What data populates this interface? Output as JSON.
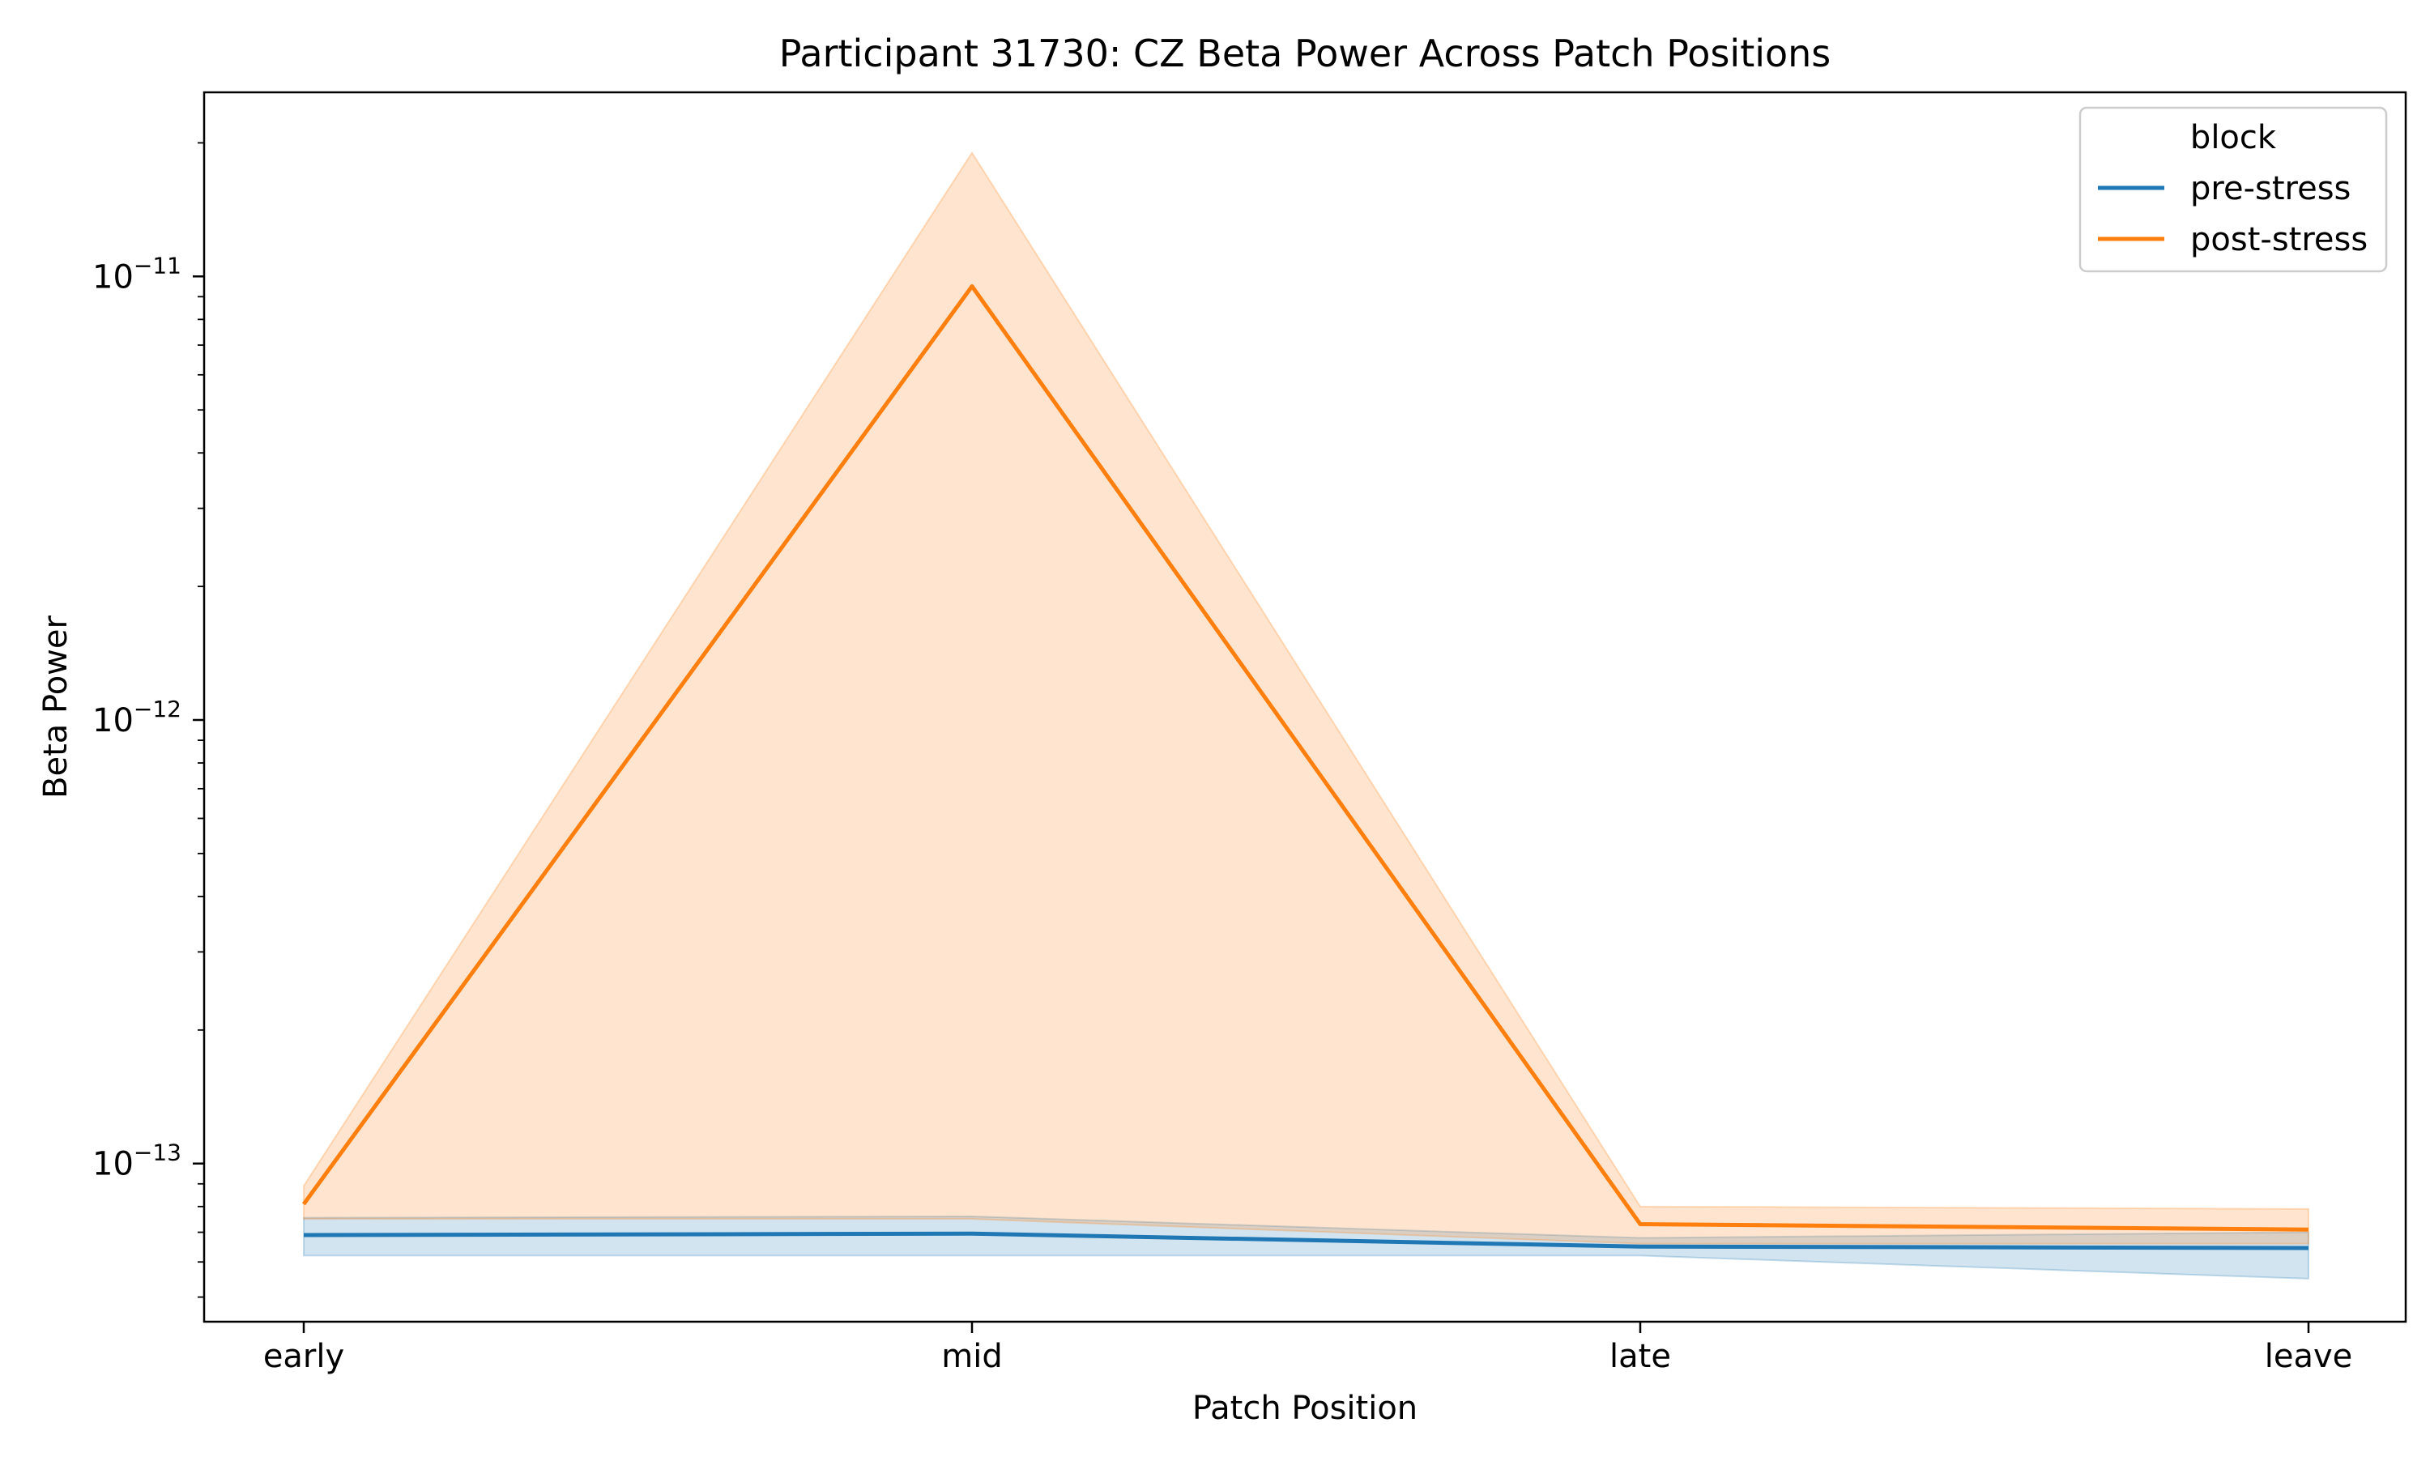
{
  "chart_data": {
    "type": "line",
    "title": "Participant 31730: CZ Beta Power Across Patch Positions",
    "xlabel": "Patch Position",
    "ylabel": "Beta Power",
    "yscale": "log",
    "ylim": [
      4.4e-14,
      2.6e-11
    ],
    "grid": false,
    "legend_position": "top-right",
    "legend_title": "block",
    "categories": [
      "early",
      "mid",
      "late",
      "leave"
    ],
    "y_ticks": [
      {
        "value": 1e-13,
        "base": "10",
        "exp": "−13"
      },
      {
        "value": 1e-12,
        "base": "10",
        "exp": "−12"
      },
      {
        "value": 1e-11,
        "base": "10",
        "exp": "−11"
      }
    ],
    "series": [
      {
        "name": "pre-stress",
        "color": "#1f77b4",
        "values": [
          6.9e-14,
          6.95e-14,
          6.5e-14,
          6.45e-14
        ],
        "ci_low": [
          6.2e-14,
          6.2e-14,
          6.2e-14,
          5.5e-14
        ],
        "ci_high": [
          7.55e-14,
          7.6e-14,
          6.8e-14,
          7e-14
        ]
      },
      {
        "name": "post-stress",
        "color": "#ff7f0e",
        "values": [
          8.1e-14,
          9.5e-12,
          7.3e-14,
          7.1e-14
        ],
        "ci_low": [
          7.5e-14,
          7.5e-14,
          6.6e-14,
          6.6e-14
        ],
        "ci_high": [
          8.9e-14,
          1.9e-11,
          8e-14,
          7.9e-14
        ]
      }
    ]
  }
}
